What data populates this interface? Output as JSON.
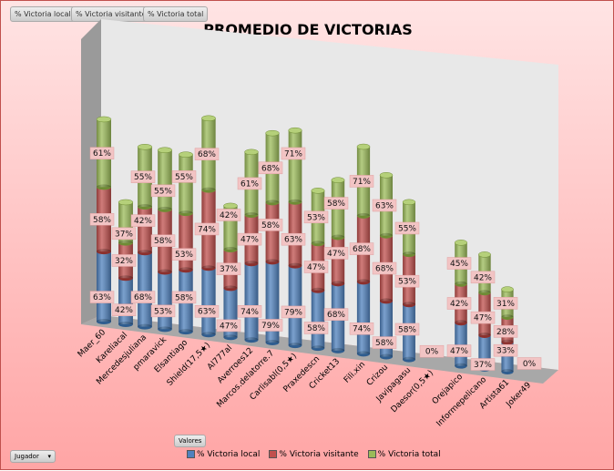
{
  "field_buttons": [
    "% Victoria local",
    "% Victoria visitante",
    "% Victoria total"
  ],
  "valores_label": "Valores",
  "jugador_label": "Jugador",
  "colors": {
    "local": "#4f81bd",
    "visitante": "#c0504d",
    "total": "#9bbb59"
  },
  "chart_data": {
    "type": "bar",
    "subtype": "3d-stacked-cylinder",
    "title": "PROMEDIO DE VICTORIAS",
    "categories": [
      "Maer_60",
      "Kareliacal",
      "Mercedesjuliana",
      "pmaravick",
      "Elsantiago",
      "Shield(17,5★)",
      "Al777al",
      "Averroes12",
      "Marcos.delatorre.7",
      "Carlisabl(0,5★)",
      "Praxedescn",
      "Cricket13",
      "Fili.xin",
      "Crizou",
      "Javipagasu",
      "Daesor(0,5★)",
      "Orejapico",
      "Informepelicano",
      "Artista61",
      "Joker49"
    ],
    "series": [
      {
        "name": "% Victoria local",
        "values": [
          63,
          42,
          68,
          53,
          58,
          63,
          47,
          74,
          79,
          79,
          58,
          68,
          74,
          58,
          58,
          0,
          47,
          37,
          33,
          0
        ]
      },
      {
        "name": "% Victoria visitante",
        "values": [
          58,
          32,
          42,
          58,
          53,
          74,
          37,
          47,
          58,
          63,
          47,
          47,
          68,
          68,
          53,
          0,
          42,
          47,
          28,
          0
        ]
      },
      {
        "name": "% Victoria total",
        "values": [
          61,
          37,
          55,
          55,
          55,
          68,
          42,
          61,
          68,
          71,
          53,
          58,
          71,
          63,
          55,
          0,
          45,
          42,
          31,
          0
        ]
      }
    ],
    "legend": "bottom"
  }
}
